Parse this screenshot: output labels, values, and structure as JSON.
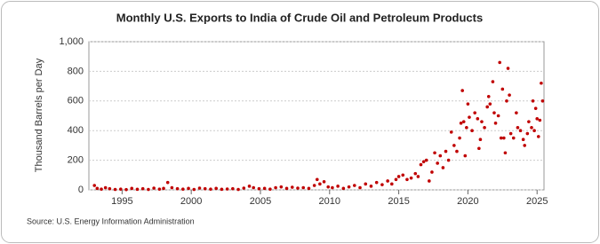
{
  "chart_data": {
    "type": "scatter",
    "title": "Monthly U.S. Exports to India of Crude Oil and Petroleum Products",
    "y_label": "Thousand Barrels per Day",
    "source": "Source: U.S. Energy Information Administration",
    "color": "#c00000",
    "xlim": [
      1992.6,
      2025.5
    ],
    "xticks": [
      1995,
      2000,
      2005,
      2010,
      2015,
      2020,
      2025
    ],
    "ylim": [
      0,
      1000
    ],
    "yticks": [
      0,
      200,
      400,
      600,
      800,
      {
        "value": 1000,
        "label": "1,000"
      }
    ],
    "grid": true,
    "x": [
      1993.0,
      1993.2,
      1993.5,
      1993.8,
      1994.1,
      1994.5,
      1994.9,
      1995.3,
      1995.7,
      1996.1,
      1996.5,
      1996.9,
      1997.3,
      1997.7,
      1998.0,
      1998.3,
      1998.6,
      1999.0,
      1999.4,
      1999.8,
      2000.2,
      2000.6,
      2001.0,
      2001.4,
      2001.8,
      2002.2,
      2002.6,
      2003.0,
      2003.4,
      2003.8,
      2004.2,
      2004.5,
      2004.9,
      2005.3,
      2005.7,
      2006.1,
      2006.5,
      2006.9,
      2007.3,
      2007.7,
      2008.1,
      2008.5,
      2008.9,
      2009.1,
      2009.3,
      2009.6,
      2009.9,
      2010.2,
      2010.6,
      2011.0,
      2011.4,
      2011.8,
      2012.2,
      2012.6,
      2013.0,
      2013.4,
      2013.8,
      2014.2,
      2014.5,
      2014.8,
      2015.0,
      2015.3,
      2015.6,
      2015.9,
      2016.2,
      2016.4,
      2016.6,
      2016.8,
      2017.0,
      2017.2,
      2017.4,
      2017.6,
      2017.8,
      2018.0,
      2018.2,
      2018.4,
      2018.6,
      2018.8,
      2019.0,
      2019.2,
      2019.4,
      2019.5,
      2019.6,
      2019.7,
      2019.8,
      2019.9,
      2020.0,
      2020.1,
      2020.3,
      2020.5,
      2020.7,
      2020.8,
      2020.9,
      2021.0,
      2021.2,
      2021.4,
      2021.5,
      2021.6,
      2021.8,
      2021.9,
      2022.0,
      2022.2,
      2022.3,
      2022.4,
      2022.5,
      2022.6,
      2022.7,
      2022.8,
      2022.9,
      2023.0,
      2023.1,
      2023.3,
      2023.5,
      2023.6,
      2023.8,
      2024.0,
      2024.1,
      2024.3,
      2024.4,
      2024.6,
      2024.7,
      2024.8,
      2024.9,
      2025.0,
      2025.1,
      2025.2,
      2025.3,
      2025.4
    ],
    "values": [
      30,
      10,
      5,
      15,
      8,
      3,
      5,
      2,
      10,
      4,
      8,
      3,
      12,
      5,
      10,
      50,
      15,
      8,
      5,
      10,
      3,
      12,
      8,
      5,
      10,
      4,
      6,
      8,
      3,
      12,
      25,
      15,
      8,
      10,
      5,
      15,
      20,
      10,
      18,
      12,
      15,
      10,
      30,
      70,
      40,
      55,
      20,
      15,
      25,
      10,
      20,
      30,
      15,
      40,
      25,
      50,
      35,
      60,
      40,
      70,
      90,
      100,
      70,
      80,
      110,
      90,
      170,
      190,
      200,
      60,
      120,
      250,
      180,
      230,
      150,
      260,
      200,
      390,
      300,
      260,
      350,
      450,
      670,
      460,
      230,
      420,
      580,
      490,
      400,
      520,
      480,
      280,
      340,
      460,
      420,
      560,
      630,
      580,
      730,
      520,
      450,
      500,
      860,
      350,
      680,
      350,
      250,
      600,
      820,
      640,
      380,
      350,
      520,
      420,
      400,
      340,
      300,
      380,
      460,
      420,
      600,
      400,
      550,
      480,
      360,
      470,
      720,
      600
    ]
  }
}
